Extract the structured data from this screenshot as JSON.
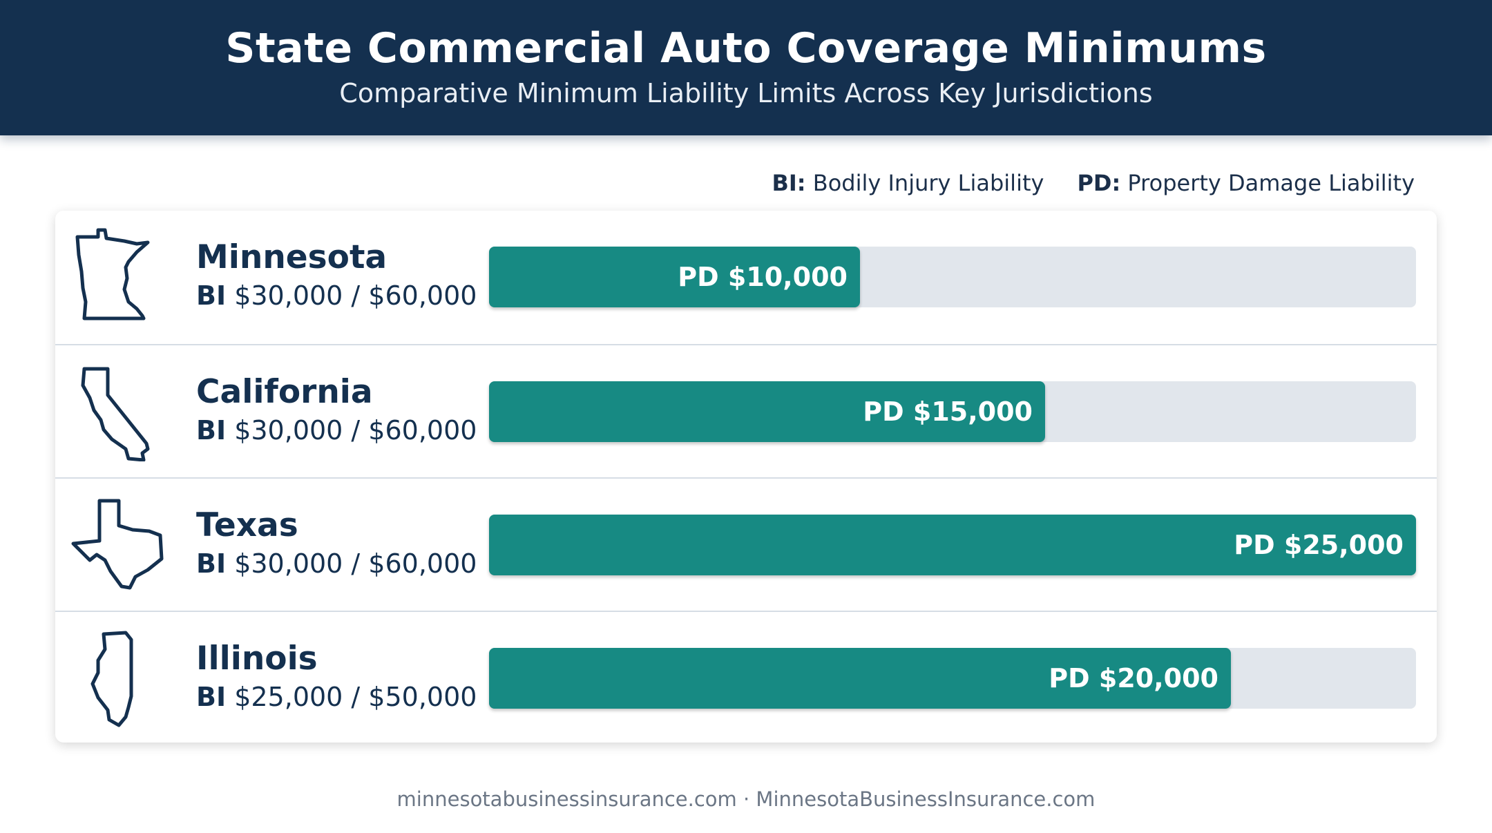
{
  "header": {
    "title": "State Commercial Auto Coverage Minimums",
    "subtitle": "Comparative Minimum Liability Limits Across Key Jurisdictions"
  },
  "legend": {
    "bi_key": "BI:",
    "bi_text": "Bodily Injury Liability",
    "pd_key": "PD:",
    "pd_text": "Property Damage Liability"
  },
  "chart_data": {
    "type": "bar",
    "orientation": "horizontal",
    "title": "State Commercial Auto Coverage Minimums",
    "subtitle": "Comparative Minimum Liability Limits Across Key Jurisdictions",
    "categories": [
      "Minnesota",
      "California",
      "Texas",
      "Illinois"
    ],
    "series": [
      {
        "name": "PD",
        "values": [
          10000,
          15000,
          25000,
          20000
        ],
        "labels": [
          "PD $10,000",
          "PD $15,000",
          "PD $25,000",
          "PD $20,000"
        ]
      }
    ],
    "bi_limits": [
      "$30,000 / $60,000",
      "$30,000 / $60,000",
      "$30,000 / $60,000",
      "$25,000 / $50,000"
    ],
    "bi_tag": "BI",
    "xlim": [
      0,
      25000
    ],
    "grid": false,
    "legend_position": "top-right",
    "colors": {
      "bar": "#178a83",
      "track": "#e1e6ec",
      "header": "#14304f",
      "text": "#14304f"
    }
  },
  "footer": {
    "text": "minnesotabusinessinsurance.com · MinnesotaBusinessInsurance.com"
  }
}
